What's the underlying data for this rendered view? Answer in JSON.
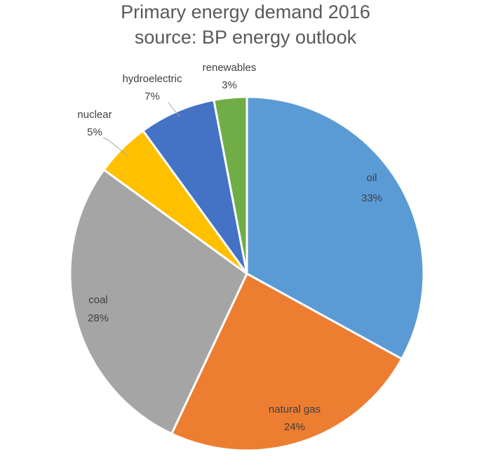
{
  "chart_data": {
    "type": "pie",
    "title": "Primary energy demand 2016",
    "subtitle": "source: BP energy outlook",
    "slices": [
      {
        "label": "oil",
        "percent_label": "33%",
        "value": 33,
        "color": "#5B9BD5"
      },
      {
        "label": "natural gas",
        "percent_label": "24%",
        "value": 24,
        "color": "#ED7D31"
      },
      {
        "label": "coal",
        "percent_label": "28%",
        "value": 28,
        "color": "#A5A5A5"
      },
      {
        "label": "nuclear",
        "percent_label": "5%",
        "value": 5,
        "color": "#FFC000"
      },
      {
        "label": "hydroelectric",
        "percent_label": "7%",
        "value": 7,
        "color": "#4472C4"
      },
      {
        "label": "renewables",
        "percent_label": "3%",
        "value": 3,
        "color": "#70AD47"
      }
    ],
    "legend": "none",
    "label_style": "inside for large slices, outside with leader lines for small slices"
  }
}
